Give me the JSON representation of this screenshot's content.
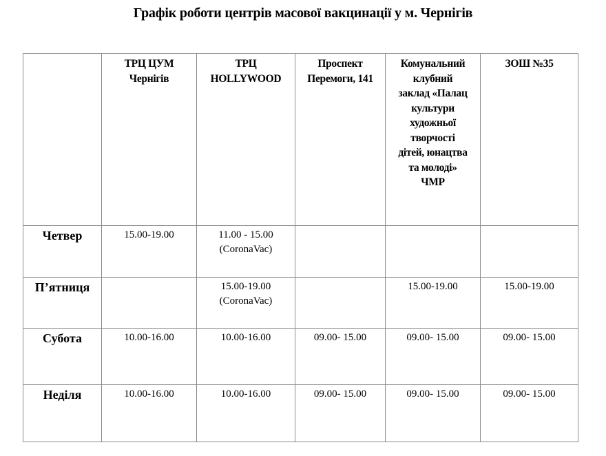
{
  "title": "Графік роботи центрів масової вакцинації у м. Чернігів",
  "table": {
    "headers": [
      [],
      [
        "ТРЦ ЦУМ",
        "Чернігів"
      ],
      [
        "ТРЦ",
        "HOLLYWOOD"
      ],
      [
        "Проспект",
        "Перемоги, 141"
      ],
      [
        "Комунальний",
        "клубний",
        "заклад «Палац",
        "культури",
        "художньої",
        "творчості",
        "дітей, юнацтва",
        "та молоді»",
        "ЧМР"
      ],
      [
        "ЗОШ №35"
      ]
    ],
    "rows": [
      {
        "day": "Четвер",
        "cells": [
          [
            "15.00-19.00"
          ],
          [
            "11.00 - 15.00",
            "(CoronaVac)"
          ],
          [],
          [],
          []
        ]
      },
      {
        "day": "П’ятниця",
        "cells": [
          [],
          [
            "15.00-19.00",
            "(CoronaVac)"
          ],
          [],
          [
            "15.00-19.00"
          ],
          [
            "15.00-19.00"
          ]
        ]
      },
      {
        "day": "Субота",
        "cells": [
          [
            "10.00-16.00"
          ],
          [
            "10.00-16.00"
          ],
          [
            "09.00- 15.00"
          ],
          [
            "09.00- 15.00"
          ],
          [
            "09.00- 15.00"
          ]
        ]
      },
      {
        "day": "Неділя",
        "cells": [
          [
            "10.00-16.00"
          ],
          [
            "10.00-16.00"
          ],
          [
            "09.00- 15.00"
          ],
          [
            "09.00- 15.00"
          ],
          [
            "09.00- 15.00"
          ]
        ]
      }
    ]
  }
}
